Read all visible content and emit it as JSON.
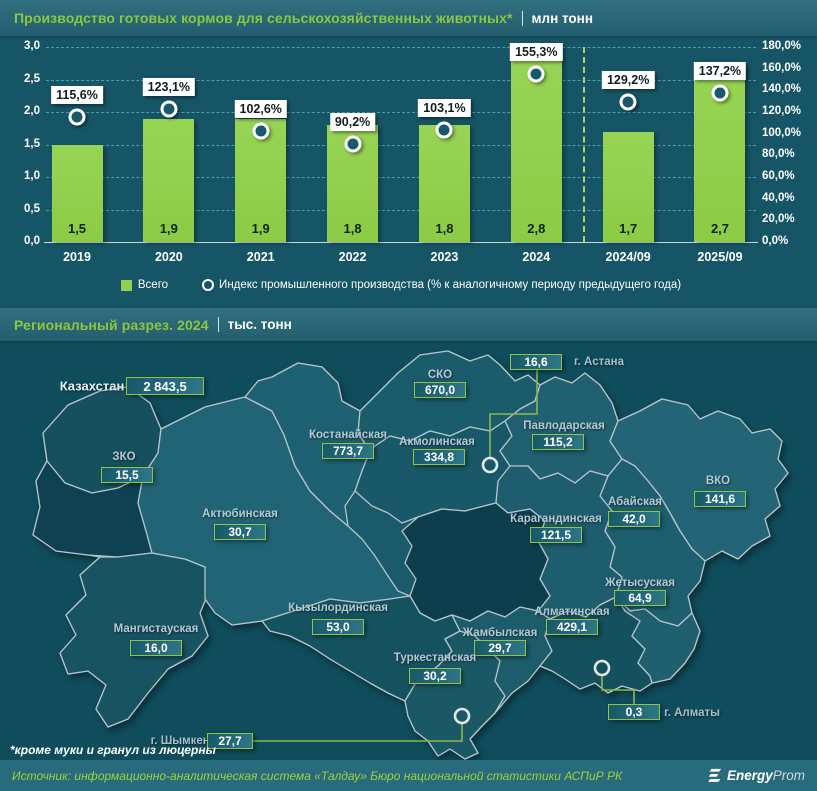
{
  "title_bar": {
    "title": "Производство готовых кормов для сельскохозяйственных животных*",
    "unit": "млн тонн"
  },
  "section_bar": {
    "title": "Региональный разрез. 2024",
    "unit": "тыс. тонн"
  },
  "legend": {
    "bars": "Всего",
    "index": "Индекс промышленного производства (% к аналогичному периоду предыдущего года)"
  },
  "chart_data": [
    {
      "type": "bar",
      "title": "Производство готовых кормов для сельскохозяйственных животных, млн тонн",
      "categories": [
        "2019",
        "2020",
        "2021",
        "2022",
        "2023",
        "2024",
        "2024/09",
        "2025/09"
      ],
      "series": [
        {
          "name": "Всего",
          "type": "bar",
          "color": "#92d04f",
          "values": [
            1.5,
            1.9,
            1.9,
            1.8,
            1.8,
            2.8,
            1.7,
            2.7
          ],
          "labels": [
            "1,5",
            "1,9",
            "1,9",
            "1,8",
            "1,8",
            "2,8",
            "1,7",
            "2,7"
          ]
        },
        {
          "name": "Индекс промышленного производства (% к аналогичному периоду предыдущего года)",
          "type": "point",
          "values": [
            115.6,
            123.1,
            102.6,
            90.2,
            103.1,
            155.3,
            129.2,
            137.2
          ],
          "labels": [
            "115,6%",
            "123,1%",
            "102,6%",
            "90,2%",
            "103,1%",
            "155,3%",
            "129,2%",
            "137,2%"
          ]
        }
      ],
      "left_axis": {
        "min": 0,
        "max": 3,
        "step": 0.5,
        "ticks": [
          "3,0",
          "2,5",
          "2,0",
          "1,5",
          "1,0",
          "0,5",
          "0,0"
        ]
      },
      "right_axis": {
        "min": 0,
        "max": 180,
        "step": 20,
        "ticks": [
          "180,0%",
          "160,0%",
          "140,0%",
          "120,0%",
          "100,0%",
          "80,0%",
          "60,0%",
          "40,0%",
          "20,0%",
          "0,0%"
        ]
      },
      "separator_after_category": "2024",
      "grid": "dashed",
      "legend_position": "bottom"
    },
    {
      "type": "map",
      "title": "Региональный разрез. 2024",
      "unit": "тыс. тонн",
      "country": {
        "name": "Казахстан",
        "value": 2843.5,
        "label": "2 843,5"
      },
      "regions": [
        {
          "id": "zko",
          "name": "ЗКО",
          "value": 15.5,
          "label": "15,5"
        },
        {
          "id": "aktobe",
          "name": "Актюбинская",
          "value": 30.7,
          "label": "30,7"
        },
        {
          "id": "kostanay",
          "name": "Костанайская",
          "value": 773.7,
          "label": "773,7"
        },
        {
          "id": "sko",
          "name": "СКО",
          "value": 670.0,
          "label": "670,0"
        },
        {
          "id": "akmola",
          "name": "Акмолинская",
          "value": 334.8,
          "label": "334,8"
        },
        {
          "id": "pavlodar",
          "name": "Павлодарская",
          "value": 115.2,
          "label": "115,2"
        },
        {
          "id": "vko",
          "name": "ВКО",
          "value": 141.6,
          "label": "141,6"
        },
        {
          "id": "abay",
          "name": "Абайская",
          "value": 42.0,
          "label": "42,0"
        },
        {
          "id": "karaganda",
          "name": "Карагандинская",
          "value": 121.5,
          "label": "121,5"
        },
        {
          "id": "zhetysu",
          "name": "Жетысуская",
          "value": 64.9,
          "label": "64,9"
        },
        {
          "id": "kyzylorda",
          "name": "Кызылординская",
          "value": 53.0,
          "label": "53,0"
        },
        {
          "id": "almaty_region",
          "name": "Алматинская",
          "value": 429.1,
          "label": "429,1"
        },
        {
          "id": "mangystau",
          "name": "Мангистауская",
          "value": 16.0,
          "label": "16,0"
        },
        {
          "id": "zhambyl",
          "name": "Жамбылская",
          "value": 29.7,
          "label": "29,7"
        },
        {
          "id": "turkestan",
          "name": "Туркестанская",
          "value": 30.2,
          "label": "30,2"
        }
      ],
      "cities": [
        {
          "id": "astana",
          "name": "г. Астана",
          "value": 16.6,
          "label": "16,6"
        },
        {
          "id": "almaty_city",
          "name": "г. Алматы",
          "value": 0.3,
          "label": "0,3"
        },
        {
          "id": "shymkent",
          "name": "г. Шымкент",
          "value": 27.7,
          "label": "27,7"
        }
      ]
    }
  ],
  "footnote": "*кроме муки и гранул из люцерны",
  "source_bar": {
    "text": "Источник: информационно-аналитическая система «Талдау» Бюро национальной статистики АСПиР РК",
    "logo_bold": "Energy",
    "logo_light": "Prom"
  }
}
